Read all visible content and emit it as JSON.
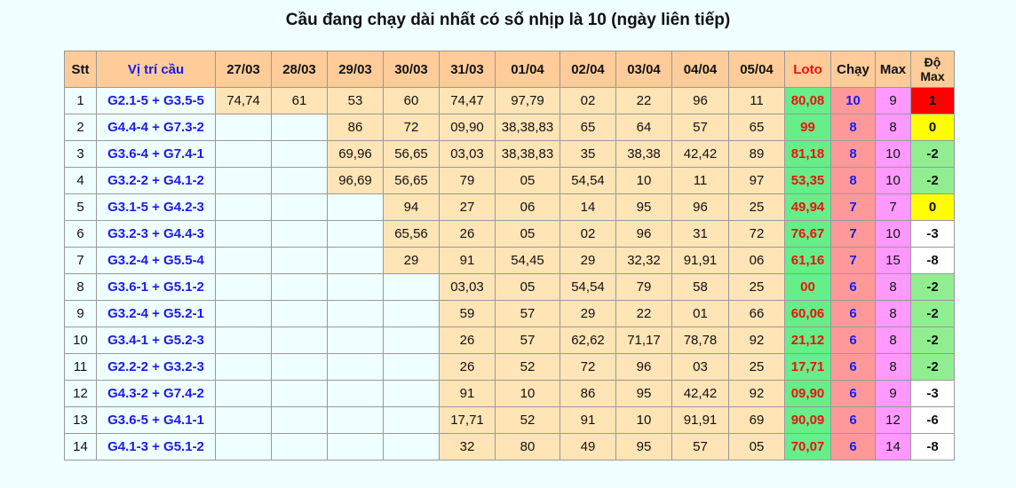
{
  "title": "Cầu đang chạy dài nhất có số nhịp là 10 (ngày liên tiếp)",
  "headers": {
    "stt": "Stt",
    "position": "Vị trí cầu",
    "dates": [
      "27/03",
      "28/03",
      "29/03",
      "30/03",
      "31/03",
      "01/04",
      "02/04",
      "03/04",
      "04/04",
      "05/04"
    ],
    "loto": "Loto",
    "chay": "Chạy",
    "max": "Max",
    "do_max": "Độ Max"
  },
  "colors": {
    "do_max_positive": "#ff0000",
    "do_max_zero": "#ffff00",
    "do_max_near": "#90ee90",
    "do_max_other": "#ffffff"
  },
  "rows": [
    {
      "stt": "1",
      "position": "G2.1-5 + G3.5-5",
      "days": [
        "74,74",
        "61",
        "53",
        "60",
        "74,47",
        "97,79",
        "02",
        "22",
        "96",
        "11"
      ],
      "loto": "80,08",
      "chay": "10",
      "max": "9",
      "do_max": "1"
    },
    {
      "stt": "2",
      "position": "G4.4-4 + G7.3-2",
      "days": [
        null,
        null,
        "86",
        "72",
        "09,90",
        "38,38,83",
        "65",
        "64",
        "57",
        "65"
      ],
      "loto": "99",
      "chay": "8",
      "max": "8",
      "do_max": "0"
    },
    {
      "stt": "3",
      "position": "G3.6-4 + G7.4-1",
      "days": [
        null,
        null,
        "69,96",
        "56,65",
        "03,03",
        "38,38,83",
        "35",
        "38,38",
        "42,42",
        "89"
      ],
      "loto": "81,18",
      "chay": "8",
      "max": "10",
      "do_max": "-2"
    },
    {
      "stt": "4",
      "position": "G3.2-2 + G4.1-2",
      "days": [
        null,
        null,
        "96,69",
        "56,65",
        "79",
        "05",
        "54,54",
        "10",
        "11",
        "97"
      ],
      "loto": "53,35",
      "chay": "8",
      "max": "10",
      "do_max": "-2"
    },
    {
      "stt": "5",
      "position": "G3.1-5 + G4.2-3",
      "days": [
        null,
        null,
        null,
        "94",
        "27",
        "06",
        "14",
        "95",
        "96",
        "25"
      ],
      "loto": "49,94",
      "chay": "7",
      "max": "7",
      "do_max": "0"
    },
    {
      "stt": "6",
      "position": "G3.2-3 + G4.4-3",
      "days": [
        null,
        null,
        null,
        "65,56",
        "26",
        "05",
        "02",
        "96",
        "31",
        "72"
      ],
      "loto": "76,67",
      "chay": "7",
      "max": "10",
      "do_max": "-3"
    },
    {
      "stt": "7",
      "position": "G3.2-4 + G5.5-4",
      "days": [
        null,
        null,
        null,
        "29",
        "91",
        "54,45",
        "29",
        "32,32",
        "91,91",
        "06"
      ],
      "loto": "61,16",
      "chay": "7",
      "max": "15",
      "do_max": "-8"
    },
    {
      "stt": "8",
      "position": "G3.6-1 + G5.1-2",
      "days": [
        null,
        null,
        null,
        null,
        "03,03",
        "05",
        "54,54",
        "79",
        "58",
        "25"
      ],
      "loto": "00",
      "chay": "6",
      "max": "8",
      "do_max": "-2"
    },
    {
      "stt": "9",
      "position": "G3.2-4 + G5.2-1",
      "days": [
        null,
        null,
        null,
        null,
        "59",
        "57",
        "29",
        "22",
        "01",
        "66"
      ],
      "loto": "60,06",
      "chay": "6",
      "max": "8",
      "do_max": "-2"
    },
    {
      "stt": "10",
      "position": "G3.4-1 + G5.2-3",
      "days": [
        null,
        null,
        null,
        null,
        "26",
        "57",
        "62,62",
        "71,17",
        "78,78",
        "92"
      ],
      "loto": "21,12",
      "chay": "6",
      "max": "8",
      "do_max": "-2"
    },
    {
      "stt": "11",
      "position": "G2.2-2 + G3.2-3",
      "days": [
        null,
        null,
        null,
        null,
        "26",
        "52",
        "72",
        "96",
        "03",
        "25"
      ],
      "loto": "17,71",
      "chay": "6",
      "max": "8",
      "do_max": "-2"
    },
    {
      "stt": "12",
      "position": "G4.3-2 + G7.4-2",
      "days": [
        null,
        null,
        null,
        null,
        "91",
        "10",
        "86",
        "95",
        "42,42",
        "92"
      ],
      "loto": "09,90",
      "chay": "6",
      "max": "9",
      "do_max": "-3"
    },
    {
      "stt": "13",
      "position": "G3.6-5 + G4.1-1",
      "days": [
        null,
        null,
        null,
        null,
        "17,71",
        "52",
        "91",
        "10",
        "91,91",
        "69"
      ],
      "loto": "90,09",
      "chay": "6",
      "max": "12",
      "do_max": "-6"
    },
    {
      "stt": "14",
      "position": "G4.1-3 + G5.1-2",
      "days": [
        null,
        null,
        null,
        null,
        "32",
        "80",
        "49",
        "95",
        "57",
        "05"
      ],
      "loto": "70,07",
      "chay": "6",
      "max": "14",
      "do_max": "-8"
    }
  ]
}
